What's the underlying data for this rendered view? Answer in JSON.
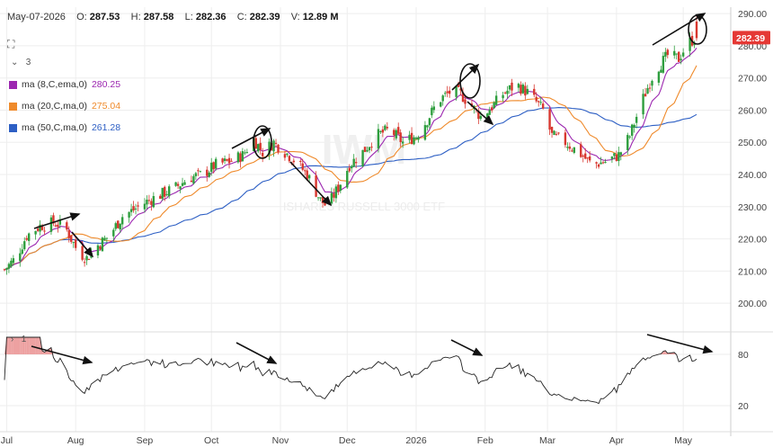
{
  "header": {
    "date": "May-07-2026",
    "open_label": "O:",
    "open": "287.53",
    "high_label": "H:",
    "high": "287.58",
    "low_label": "L:",
    "low": "282.36",
    "close_label": "C:",
    "close": "282.39",
    "volume_label": "V:",
    "volume": "12.89 M"
  },
  "controls": {
    "collapse": "3",
    "lower_collapse": "1"
  },
  "legend": [
    {
      "label": "ma (8,C,ema,0)",
      "value": "280.25",
      "color": "#9c27b0"
    },
    {
      "label": "ma (20,C,ma,0)",
      "value": "275.04",
      "color": "#ef8a2b"
    },
    {
      "label": "ma (50,C,ma,0)",
      "value": "261.28",
      "color": "#2d5fc4"
    }
  ],
  "watermark": {
    "symbol": "IWM",
    "name": "ISHARES RUSSELL 3000 ETF"
  },
  "last_price": "282.39",
  "colors": {
    "up": "#2e9e3e",
    "down": "#d8372f",
    "rsi_line": "#222222",
    "rsi_fill": "#e88a8a",
    "price_tag": "#e53935"
  },
  "chart_data": {
    "type": "candlestick",
    "y_axis": {
      "ticks": [
        "290.00",
        "280.00",
        "270.00",
        "260.00",
        "250.00",
        "240.00",
        "230.00",
        "220.00",
        "210.00",
        "200.00"
      ],
      "range": [
        195,
        292
      ]
    },
    "x_axis": {
      "ticks": [
        "Jul",
        "Aug",
        "Sep",
        "Oct",
        "Nov",
        "Dec",
        "2026",
        "Feb",
        "Mar",
        "Apr",
        "May"
      ]
    },
    "close_path": [
      [
        "Jun-28",
        209
      ],
      [
        "Jul-05",
        214
      ],
      [
        "Jul-10",
        221
      ],
      [
        "Jul-16",
        224
      ],
      [
        "Jul-22",
        225
      ],
      [
        "Jul-27",
        224
      ],
      [
        "Aug-02",
        216
      ],
      [
        "Aug-06",
        214
      ],
      [
        "Aug-11",
        218
      ],
      [
        "Aug-16",
        221
      ],
      [
        "Aug-22",
        227
      ],
      [
        "Aug-27",
        229
      ],
      [
        "Sep-03",
        232
      ],
      [
        "Sep-09",
        234
      ],
      [
        "Sep-15",
        236
      ],
      [
        "Sep-21",
        239
      ],
      [
        "Sep-27",
        240
      ],
      [
        "Oct-03",
        243
      ],
      [
        "Oct-09",
        244
      ],
      [
        "Oct-15",
        246
      ],
      [
        "Oct-20",
        251
      ],
      [
        "Oct-24",
        247
      ],
      [
        "Oct-29",
        250
      ],
      [
        "Nov-03",
        247
      ],
      [
        "Nov-08",
        244
      ],
      [
        "Nov-13",
        240
      ],
      [
        "Nov-19",
        232
      ],
      [
        "Nov-22",
        230
      ],
      [
        "Nov-27",
        236
      ],
      [
        "Dec-02",
        243
      ],
      [
        "Dec-08",
        247
      ],
      [
        "Dec-14",
        252
      ],
      [
        "Dec-20",
        254
      ],
      [
        "Dec-26",
        250
      ],
      [
        "Jan-01",
        252
      ],
      [
        "Jan-06",
        257
      ],
      [
        "Jan-11",
        263
      ],
      [
        "Jan-17",
        266
      ],
      [
        "Jan-21",
        265
      ],
      [
        "Jan-25",
        262
      ],
      [
        "Jan-30",
        258
      ],
      [
        "Feb-04",
        261
      ],
      [
        "Feb-09",
        265
      ],
      [
        "Feb-15",
        268
      ],
      [
        "Feb-21",
        265
      ],
      [
        "Feb-27",
        260
      ],
      [
        "Mar-03",
        252
      ],
      [
        "Mar-09",
        250
      ],
      [
        "Mar-15",
        247
      ],
      [
        "Mar-21",
        243
      ],
      [
        "Mar-27",
        244
      ],
      [
        "Apr-02",
        246
      ],
      [
        "Apr-07",
        252
      ],
      [
        "Apr-12",
        262
      ],
      [
        "Apr-18",
        272
      ],
      [
        "Apr-24",
        277
      ],
      [
        "Apr-29",
        276
      ],
      [
        "May-03",
        281
      ],
      [
        "May-07",
        282.39
      ]
    ],
    "rsi": {
      "ticks": [
        "80",
        "20"
      ],
      "range": [
        0,
        100
      ],
      "levels": [
        80,
        20
      ]
    }
  }
}
